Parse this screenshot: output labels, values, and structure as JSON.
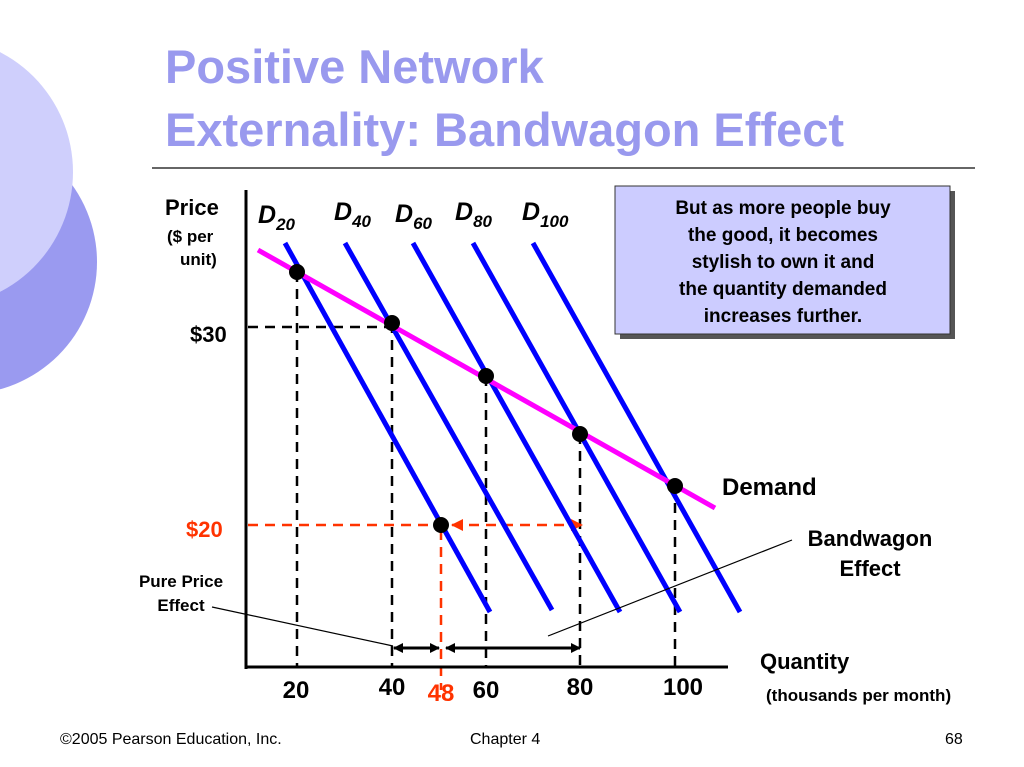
{
  "slide": {
    "title_line1": "Positive Network",
    "title_line2": "Externality: Bandwagon Effect",
    "footer": {
      "copyright": "©2005 Pearson Education, Inc.",
      "chapter": "Chapter 4",
      "page": "68"
    }
  },
  "diagram": {
    "y_axis": {
      "label": "Price",
      "unit_line1": "($ per",
      "unit_line2": "unit)"
    },
    "x_axis": {
      "label": "Quantity",
      "unit": "(thousands per month)"
    },
    "price_labels": {
      "p30": "$30",
      "p20": "$20"
    },
    "x_ticks": {
      "t20": "20",
      "t40": "40",
      "t48": "48",
      "t60": "60",
      "t80": "80",
      "t100": "100"
    },
    "demand_curves": [
      {
        "D": "D",
        "sub": "20"
      },
      {
        "D": "D",
        "sub": "40"
      },
      {
        "D": "D",
        "sub": "60"
      },
      {
        "D": "D",
        "sub": "80"
      },
      {
        "D": "D",
        "sub": "100"
      }
    ],
    "market_demand_label": "Demand",
    "pure_price_effect": {
      "line1": "Pure Price",
      "line2": "Effect"
    },
    "bandwagon_effect": {
      "line1": "Bandwagon",
      "line2": "Effect"
    },
    "note": [
      "But as more people buy",
      "the good, it becomes",
      "stylish to own it and",
      "the quantity demanded",
      "increases further."
    ],
    "colors": {
      "curves": "#0000ff",
      "demand": "#ff00ff",
      "highlight": "#ff3300",
      "title": "#9999ee",
      "note_bg": "#ccccff"
    }
  }
}
